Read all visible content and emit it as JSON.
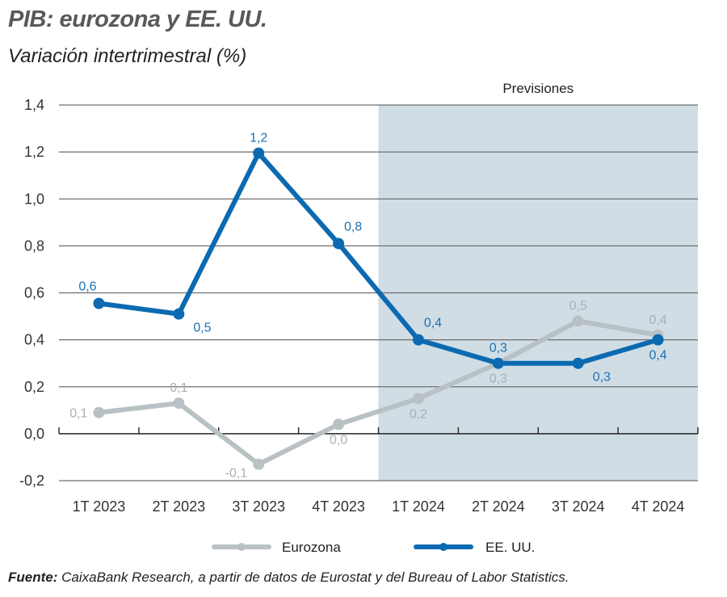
{
  "header": {
    "title": "PIB: eurozona y EE. UU.",
    "subtitle": "Variación intertrimestral (%)"
  },
  "source": {
    "label": "Fuente:",
    "text": " CaixaBank Research, a partir de datos de Eurostat y del Bureau of Labor Statistics."
  },
  "colors": {
    "eurozona": "#b8c1c3",
    "eeuu": "#0b6ab1",
    "forecast_band": "#d1dde5",
    "grid": "#6d6e70"
  },
  "chart_data": {
    "type": "line",
    "title": "PIB: eurozona y EE. UU.",
    "subtitle": "Variación intertrimestral (%)",
    "xlabel": "",
    "ylabel": "",
    "categories": [
      "1T 2023",
      "2T 2023",
      "3T 2023",
      "4T 2023",
      "1T 2024",
      "2T 2024",
      "3T 2024",
      "4T 2024"
    ],
    "ylim": [
      -0.2,
      1.4
    ],
    "yticks": [
      -0.2,
      0.0,
      0.2,
      0.4,
      0.6,
      0.8,
      1.0,
      1.2,
      1.4
    ],
    "ytick_labels": [
      "-0,2",
      "0,0",
      "0,2",
      "0,4",
      "0,6",
      "0,8",
      "1,0",
      "1,2",
      "1,4"
    ],
    "grid": true,
    "legend_position": "bottom",
    "forecast_region": {
      "from_index": 4,
      "to_index": 7,
      "label": "Previsiones"
    },
    "series": [
      {
        "name": "Eurozona",
        "values": [
          0.09,
          0.13,
          -0.13,
          0.04,
          0.15,
          0.3,
          0.48,
          0.42
        ],
        "labels": [
          "0,1",
          "0,1",
          "-0,1",
          "0,0",
          "0,2",
          "0,3",
          "0,5",
          "0,4"
        ],
        "label_pos": [
          "left",
          "above",
          "below-left",
          "below",
          "below",
          "below",
          "above",
          "above"
        ]
      },
      {
        "name": "EE. UU.",
        "values": [
          0.555,
          0.51,
          1.195,
          0.81,
          0.4,
          0.3,
          0.3,
          0.4
        ],
        "labels": [
          "0,6",
          "0,5",
          "1,2",
          "0,8",
          "0,4",
          "0,3",
          "0,3",
          "0,4"
        ],
        "label_pos": [
          "above-left",
          "below-right",
          "above",
          "above-right",
          "above-right",
          "above",
          "below-right",
          "below"
        ]
      }
    ]
  }
}
